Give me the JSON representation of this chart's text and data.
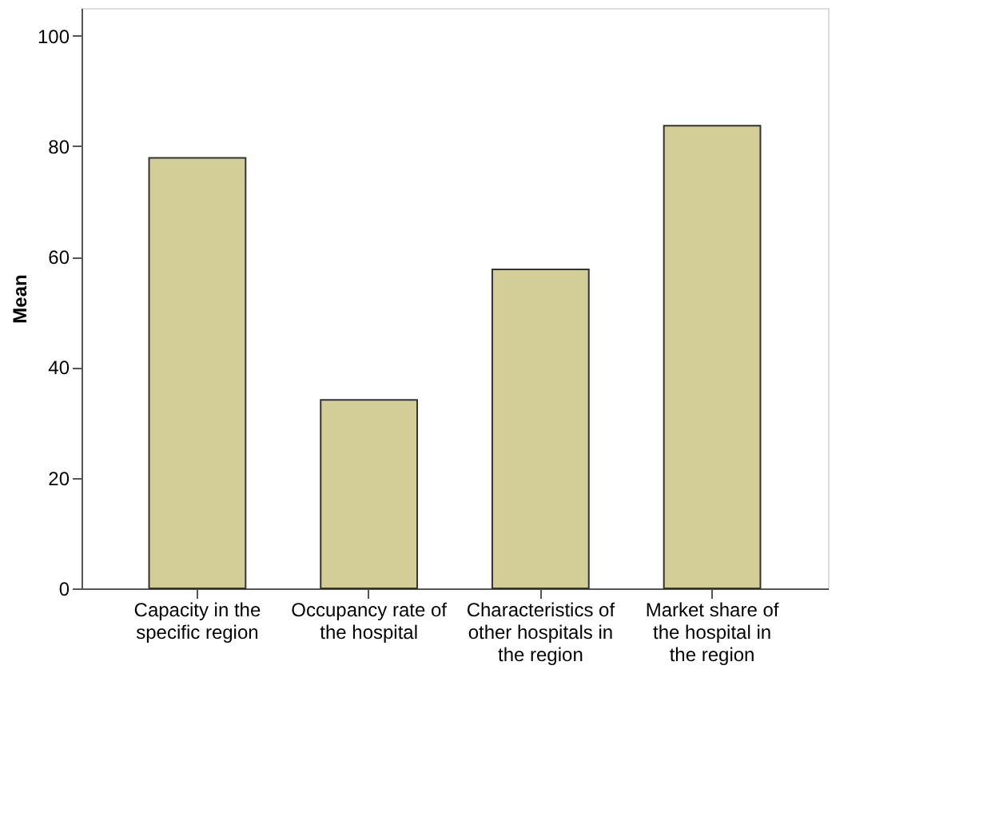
{
  "chart_data": {
    "type": "bar",
    "ylabel": "Mean",
    "categories": [
      "Capacity in the specific region",
      "Occupancy rate of the hospital",
      "Characteristics of other hospitals in the region",
      "Market share of the hospital in the region"
    ],
    "values": [
      77.9,
      34.1,
      57.7,
      83.7
    ],
    "color": "#d3ce97",
    "ylim": [
      0,
      105
    ],
    "yticks": [
      0,
      20,
      40,
      60,
      80,
      100
    ],
    "grid": false
  }
}
